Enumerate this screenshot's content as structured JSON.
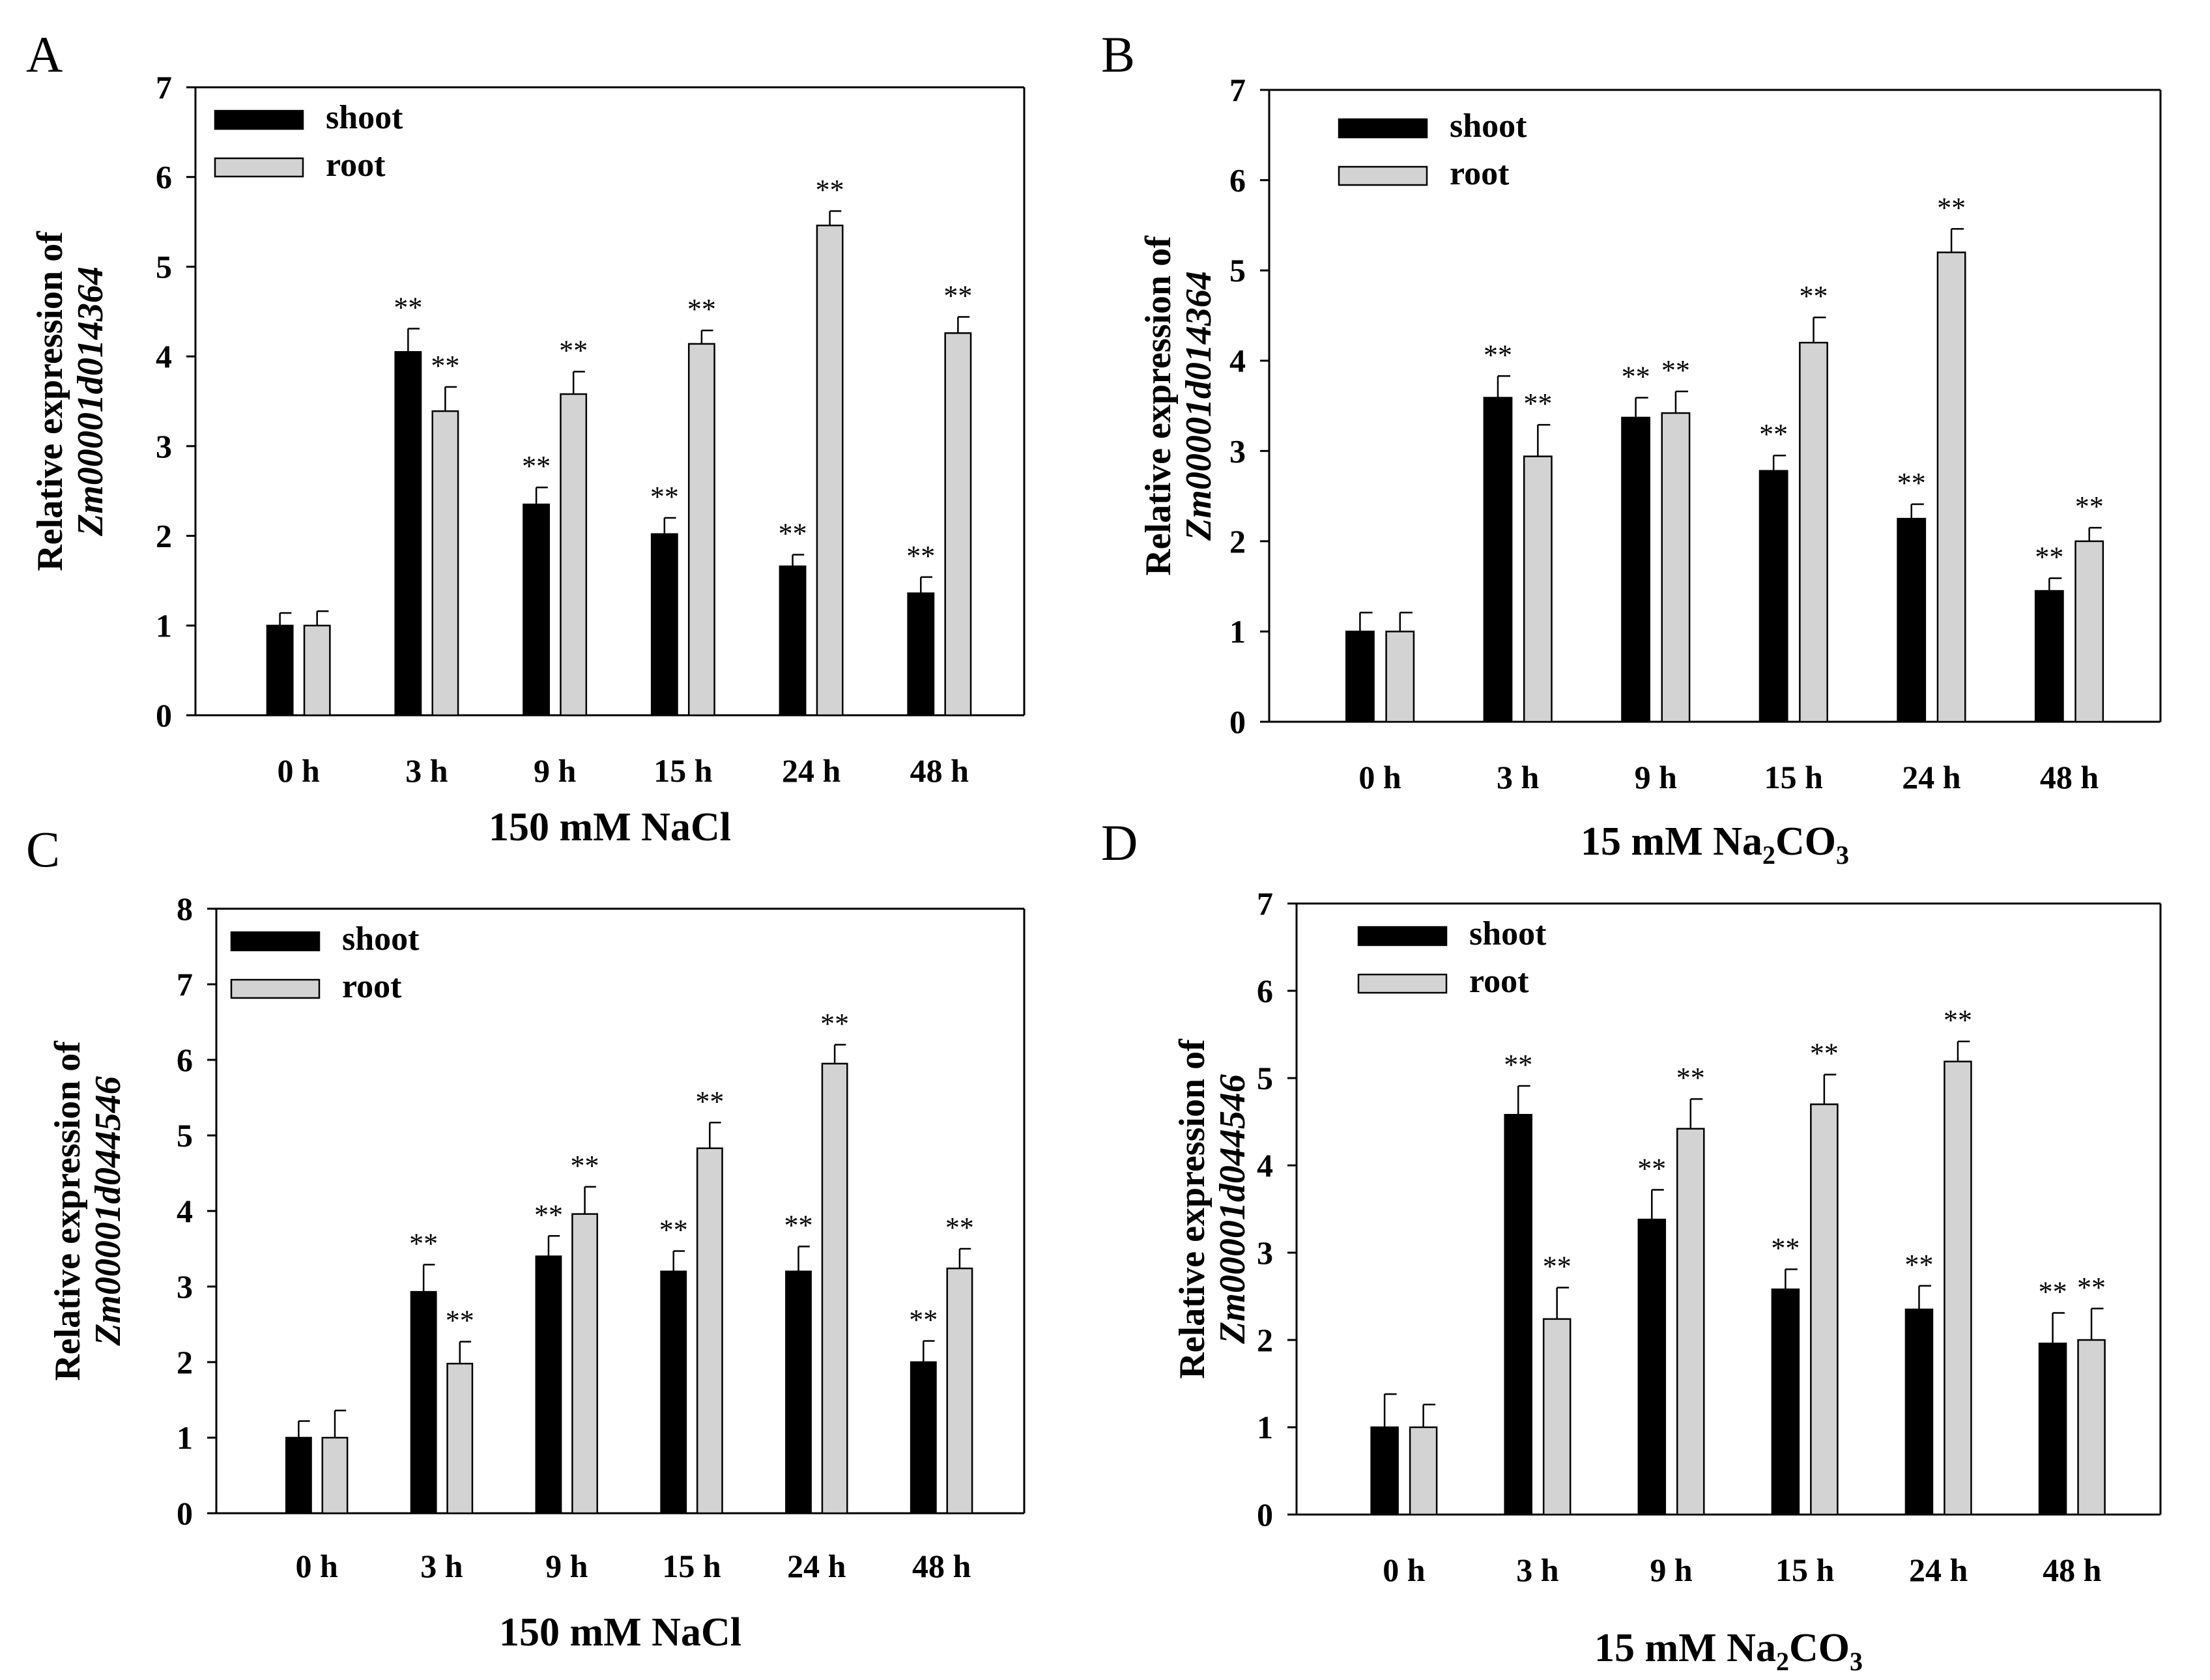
{
  "chart_data": [
    {
      "panel": "A",
      "type": "bar",
      "categories": [
        "0 h",
        "3 h",
        "9 h",
        "15 h",
        "24 h",
        "48 h"
      ],
      "series": [
        {
          "name": "shoot",
          "color": "#000000",
          "values": [
            1.0,
            4.05,
            2.35,
            2.02,
            1.66,
            1.36
          ],
          "errors": [
            0.14,
            0.26,
            0.19,
            0.18,
            0.13,
            0.18
          ],
          "sig": [
            "",
            "**",
            "**",
            "**",
            "**",
            "**"
          ]
        },
        {
          "name": "root",
          "color": "#d3d3d3",
          "values": [
            1.0,
            3.39,
            3.58,
            4.14,
            5.46,
            4.26
          ],
          "errors": [
            0.16,
            0.27,
            0.25,
            0.15,
            0.16,
            0.18
          ],
          "sig": [
            "",
            "**",
            "**",
            "**",
            "**",
            "**"
          ]
        }
      ],
      "ylabel_line1": "Relative expression of",
      "ylabel_line2": "Zm00001d014364",
      "xlabel": "150 mM NaCl",
      "xlabel_sub": "",
      "xlabel_tail": "",
      "ylim": [
        0,
        7
      ],
      "yticks": [
        "0",
        "1",
        "2",
        "3",
        "4",
        "5",
        "6",
        "7"
      ],
      "legend_position": "top-left"
    },
    {
      "panel": "B",
      "type": "bar",
      "categories": [
        "0 h",
        "3 h",
        "9 h",
        "15 h",
        "24 h",
        "48 h"
      ],
      "series": [
        {
          "name": "shoot",
          "color": "#000000",
          "values": [
            1.0,
            3.59,
            3.37,
            2.78,
            2.25,
            1.45
          ],
          "errors": [
            0.21,
            0.24,
            0.22,
            0.17,
            0.16,
            0.14
          ],
          "sig": [
            "",
            "**",
            "**",
            "**",
            "**",
            "**"
          ]
        },
        {
          "name": "root",
          "color": "#d3d3d3",
          "values": [
            1.0,
            2.94,
            3.42,
            4.2,
            5.2,
            2.0
          ],
          "errors": [
            0.21,
            0.35,
            0.24,
            0.28,
            0.26,
            0.15
          ],
          "sig": [
            "",
            "**",
            "**",
            "**",
            "**",
            "**"
          ]
        }
      ],
      "ylabel_line1": "Relative expression of",
      "ylabel_line2": "Zm00001d014364",
      "xlabel": "15 mM Na",
      "xlabel_sub": "2",
      "xlabel_tail": "CO",
      "xlabel_sub2": "3",
      "ylim": [
        0,
        7
      ],
      "yticks": [
        "0",
        "1",
        "2",
        "3",
        "4",
        "5",
        "6",
        "7"
      ],
      "legend_position": "top-left"
    },
    {
      "panel": "C",
      "type": "bar",
      "categories": [
        "0 h",
        "3 h",
        "9 h",
        "15 h",
        "24 h",
        "48 h"
      ],
      "series": [
        {
          "name": "shoot",
          "color": "#000000",
          "values": [
            1.0,
            2.93,
            3.4,
            3.2,
            3.2,
            2.0
          ],
          "errors": [
            0.22,
            0.36,
            0.27,
            0.27,
            0.33,
            0.28
          ],
          "sig": [
            "",
            "**",
            "**",
            "**",
            "**",
            "**"
          ]
        },
        {
          "name": "root",
          "color": "#d3d3d3",
          "values": [
            1.0,
            1.98,
            3.96,
            4.83,
            5.95,
            3.24
          ],
          "errors": [
            0.36,
            0.29,
            0.36,
            0.34,
            0.25,
            0.26
          ],
          "sig": [
            "",
            "**",
            "**",
            "**",
            "**",
            "**"
          ]
        }
      ],
      "ylabel_line1": "Relative expression of",
      "ylabel_line2": "Zm00001d044546",
      "xlabel": "150 mM NaCl",
      "xlabel_sub": "",
      "xlabel_tail": "",
      "ylim": [
        0,
        8
      ],
      "yticks": [
        "0",
        "1",
        "2",
        "3",
        "4",
        "5",
        "6",
        "7",
        "8"
      ],
      "legend_position": "top-left"
    },
    {
      "panel": "D",
      "type": "bar",
      "categories": [
        "0 h",
        "3 h",
        "9 h",
        "15 h",
        "24 h",
        "48 h"
      ],
      "series": [
        {
          "name": "shoot",
          "color": "#000000",
          "values": [
            1.0,
            4.58,
            3.38,
            2.58,
            2.35,
            1.96
          ],
          "errors": [
            0.38,
            0.33,
            0.34,
            0.23,
            0.27,
            0.35
          ],
          "sig": [
            "",
            "**",
            "**",
            "**",
            "**",
            "**"
          ]
        },
        {
          "name": "root",
          "color": "#d3d3d3",
          "values": [
            1.0,
            2.24,
            4.42,
            4.7,
            5.19,
            2.0
          ],
          "errors": [
            0.26,
            0.36,
            0.34,
            0.34,
            0.23,
            0.36
          ],
          "sig": [
            "",
            "**",
            "**",
            "**",
            "**",
            "**"
          ]
        }
      ],
      "ylabel_line1": "Relative expression of",
      "ylabel_line2": "Zm00001d044546",
      "xlabel": "15 mM Na",
      "xlabel_sub": "2",
      "xlabel_tail": "CO",
      "xlabel_sub2": "3",
      "ylim": [
        0,
        7
      ],
      "yticks": [
        "0",
        "1",
        "2",
        "3",
        "4",
        "5",
        "6",
        "7"
      ],
      "legend_position": "top-left"
    }
  ]
}
